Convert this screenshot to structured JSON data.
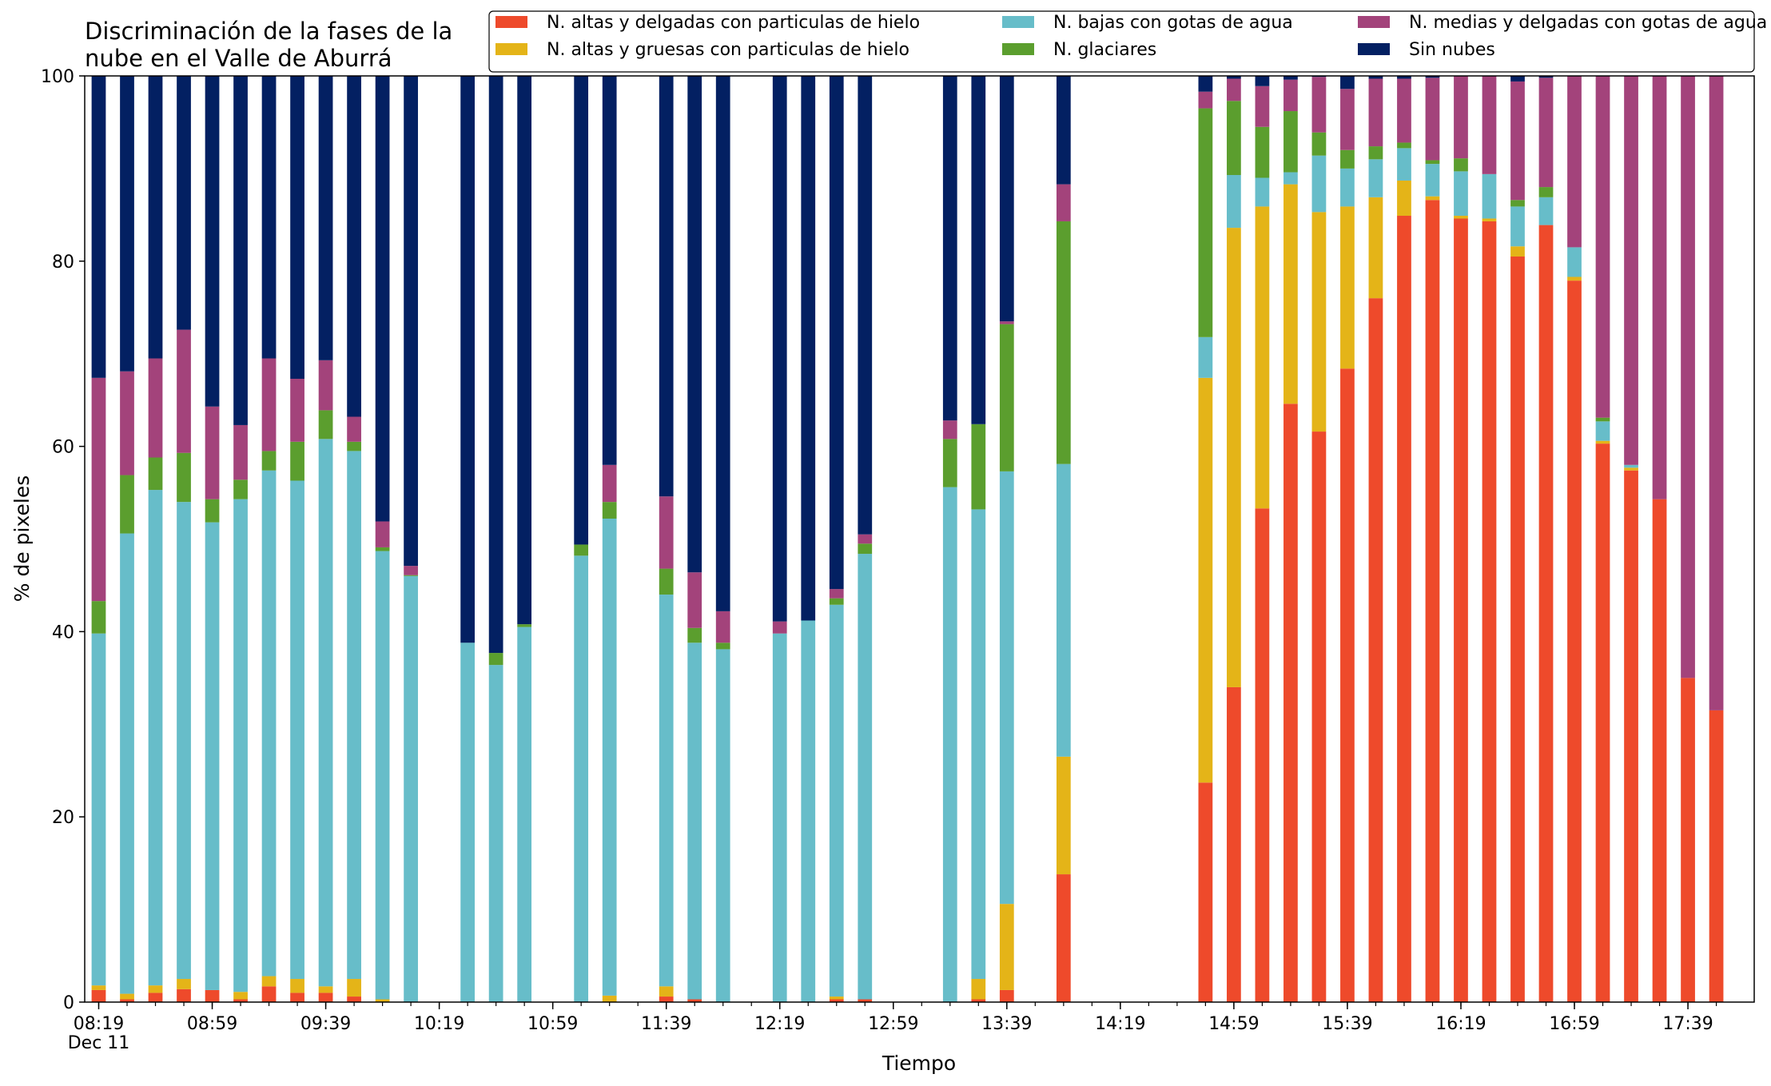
{
  "chart_data": {
    "type": "bar",
    "stacked": true,
    "title": "Discriminación de la fases de la\nnube en el Valle de Aburrá",
    "title_lines": [
      "Discriminación de la fases de la",
      "nube en el Valle de Aburrá"
    ],
    "xlabel": "Tiempo",
    "ylabel": "% de pixeles",
    "ylim": [
      0,
      100
    ],
    "yticks": [
      "0",
      "20",
      "40",
      "60",
      "80",
      "100"
    ],
    "xticks": [
      "08:19",
      "08:59",
      "09:39",
      "10:19",
      "10:59",
      "11:39",
      "12:19",
      "12:59",
      "13:39",
      "14:19",
      "14:59",
      "15:39",
      "16:19",
      "16:59",
      "17:39"
    ],
    "xtick_sublabel": "Dec 11",
    "slot_minutes": 10,
    "slots_total": 58,
    "bar_width_slots": 0.5,
    "grid": false,
    "legend_position": "top-right",
    "legend_ncol": 3,
    "series": [
      {
        "name": "N. altas y delgadas con particulas de hielo",
        "color": "#ee4a2b"
      },
      {
        "name": "N. altas y gruesas con particulas de hielo",
        "color": "#e4b418"
      },
      {
        "name": "N. bajas con gotas de agua",
        "color": "#67bdc9"
      },
      {
        "name": "N. glaciares",
        "color": "#5b9e2e"
      },
      {
        "name": "N. medias y delgadas con gotas de agua",
        "color": "#a3437b"
      },
      {
        "name": "Sin nubes",
        "color": "#032062"
      }
    ],
    "bars": [
      {
        "t": "08:19",
        "v": [
          1.3,
          0.5,
          38.0,
          3.5,
          24.1,
          32.6
        ]
      },
      {
        "t": "08:29",
        "v": [
          0.3,
          0.6,
          49.7,
          6.3,
          11.2,
          31.9
        ]
      },
      {
        "t": "08:39",
        "v": [
          1.0,
          0.8,
          53.5,
          3.5,
          10.7,
          30.5
        ]
      },
      {
        "t": "08:49",
        "v": [
          1.4,
          1.1,
          51.5,
          5.3,
          13.3,
          27.4
        ]
      },
      {
        "t": "08:59",
        "v": [
          1.3,
          0.0,
          50.5,
          2.5,
          10.0,
          35.7
        ]
      },
      {
        "t": "09:09",
        "v": [
          0.3,
          0.8,
          53.2,
          2.1,
          5.9,
          37.7
        ]
      },
      {
        "t": "09:19",
        "v": [
          1.7,
          1.1,
          54.6,
          2.1,
          10.0,
          30.5
        ]
      },
      {
        "t": "09:29",
        "v": [
          1.0,
          1.5,
          53.8,
          4.2,
          6.8,
          32.7
        ]
      },
      {
        "t": "09:39",
        "v": [
          1.0,
          0.7,
          59.1,
          3.1,
          5.4,
          30.7
        ]
      },
      {
        "t": "09:49",
        "v": [
          0.6,
          1.9,
          57.0,
          1.0,
          2.7,
          36.8
        ]
      },
      {
        "t": "09:59",
        "v": [
          0.0,
          0.3,
          48.4,
          0.4,
          2.8,
          48.1
        ]
      },
      {
        "t": "10:09",
        "v": [
          0.0,
          0.0,
          46.0,
          0.1,
          1.0,
          52.9
        ]
      },
      {
        "t": "10:29",
        "v": [
          0.0,
          0.0,
          38.8,
          0.0,
          0.0,
          61.2
        ]
      },
      {
        "t": "10:39",
        "v": [
          0.0,
          0.0,
          36.4,
          1.3,
          0.0,
          62.3
        ]
      },
      {
        "t": "10:49",
        "v": [
          0.0,
          0.0,
          40.5,
          0.3,
          0.0,
          59.2
        ]
      },
      {
        "t": "11:09",
        "v": [
          0.0,
          0.0,
          48.2,
          1.2,
          0.0,
          50.6
        ]
      },
      {
        "t": "11:19",
        "v": [
          0.0,
          0.7,
          51.5,
          1.8,
          4.0,
          42.0
        ]
      },
      {
        "t": "11:39",
        "v": [
          0.6,
          1.1,
          42.3,
          2.8,
          7.8,
          45.4
        ]
      },
      {
        "t": "11:49",
        "v": [
          0.3,
          0.0,
          38.5,
          1.6,
          6.0,
          53.6
        ]
      },
      {
        "t": "11:59",
        "v": [
          0.0,
          0.0,
          38.1,
          0.7,
          3.4,
          57.8
        ]
      },
      {
        "t": "12:19",
        "v": [
          0.0,
          0.0,
          39.8,
          0.0,
          1.3,
          58.9
        ]
      },
      {
        "t": "12:29",
        "v": [
          0.0,
          0.0,
          41.2,
          0.0,
          0.0,
          58.8
        ]
      },
      {
        "t": "12:39",
        "v": [
          0.3,
          0.3,
          42.3,
          0.7,
          1.0,
          55.4
        ]
      },
      {
        "t": "12:49",
        "v": [
          0.3,
          0.0,
          48.1,
          1.1,
          1.0,
          49.5
        ]
      },
      {
        "t": "13:19",
        "v": [
          0.0,
          0.0,
          55.6,
          5.2,
          2.0,
          37.2
        ]
      },
      {
        "t": "13:29",
        "v": [
          0.3,
          2.2,
          50.7,
          9.2,
          0.0,
          37.6
        ]
      },
      {
        "t": "13:39",
        "v": [
          1.3,
          9.3,
          46.7,
          15.9,
          0.3,
          26.5
        ]
      },
      {
        "t": "13:59",
        "v": [
          13.8,
          12.7,
          31.6,
          26.2,
          4.0,
          11.7
        ]
      },
      {
        "t": "14:49",
        "v": [
          23.7,
          43.7,
          4.4,
          24.7,
          1.8,
          1.7
        ]
      },
      {
        "t": "14:59",
        "v": [
          34.0,
          49.6,
          5.7,
          8.0,
          2.4,
          0.3
        ]
      },
      {
        "t": "15:09",
        "v": [
          53.3,
          32.6,
          3.1,
          5.5,
          4.4,
          1.1
        ]
      },
      {
        "t": "15:19",
        "v": [
          64.6,
          23.7,
          1.3,
          6.6,
          3.4,
          0.4
        ]
      },
      {
        "t": "15:29",
        "v": [
          61.6,
          23.7,
          6.1,
          2.5,
          6.0,
          0.1
        ]
      },
      {
        "t": "15:39",
        "v": [
          68.4,
          17.5,
          4.1,
          2.0,
          6.6,
          1.4
        ]
      },
      {
        "t": "15:49",
        "v": [
          76.0,
          10.9,
          4.1,
          1.4,
          7.3,
          0.3
        ]
      },
      {
        "t": "15:59",
        "v": [
          84.9,
          3.8,
          3.5,
          0.6,
          6.9,
          0.3
        ]
      },
      {
        "t": "16:09",
        "v": [
          86.6,
          0.4,
          3.5,
          0.4,
          8.9,
          0.2
        ]
      },
      {
        "t": "16:19",
        "v": [
          84.6,
          0.3,
          4.8,
          1.4,
          8.9,
          0.0
        ]
      },
      {
        "t": "16:29",
        "v": [
          84.3,
          0.3,
          4.8,
          0.0,
          10.6,
          0.0
        ]
      },
      {
        "t": "16:39",
        "v": [
          80.5,
          1.1,
          4.3,
          0.7,
          12.8,
          0.6
        ]
      },
      {
        "t": "16:49",
        "v": [
          83.9,
          0.0,
          3.0,
          1.1,
          11.8,
          0.2
        ]
      },
      {
        "t": "16:59",
        "v": [
          77.9,
          0.4,
          3.2,
          0.0,
          18.5,
          0.0
        ]
      },
      {
        "t": "17:09",
        "v": [
          60.3,
          0.3,
          2.1,
          0.4,
          36.9,
          0.0
        ]
      },
      {
        "t": "17:19",
        "v": [
          57.4,
          0.3,
          0.3,
          0.0,
          42.0,
          0.0
        ]
      },
      {
        "t": "17:29",
        "v": [
          54.3,
          0.0,
          0.0,
          0.0,
          45.7,
          0.0
        ]
      },
      {
        "t": "17:39",
        "v": [
          35.0,
          0.0,
          0.0,
          0.0,
          65.0,
          0.0
        ]
      },
      {
        "t": "17:49",
        "v": [
          31.5,
          0.0,
          0.0,
          0.0,
          68.5,
          0.0
        ]
      }
    ]
  }
}
